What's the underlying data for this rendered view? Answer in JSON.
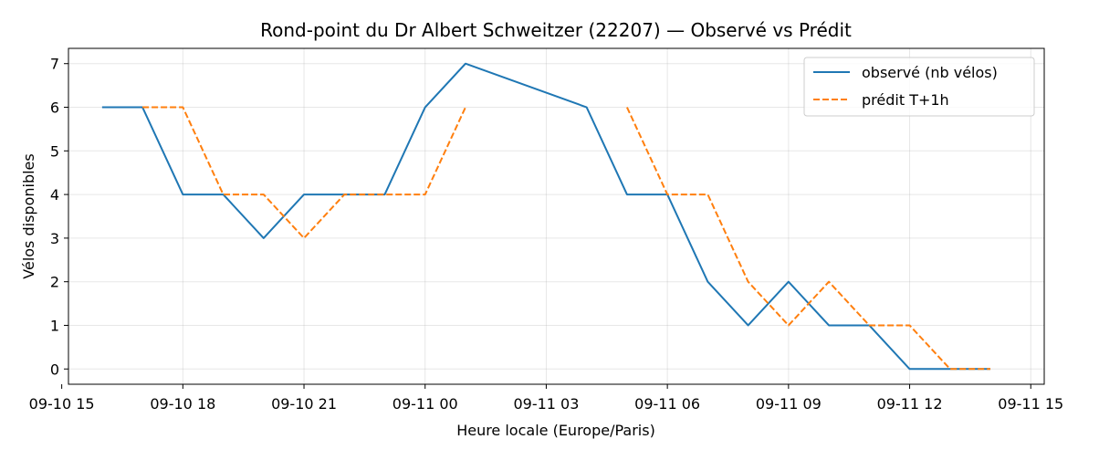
{
  "chart_data": {
    "type": "line",
    "title": "Rond-point du Dr Albert Schweitzer (22207) — Observé vs Prédit",
    "xlabel": "Heure locale (Europe/Paris)",
    "ylabel": "Vélos disponibles",
    "xlim": [
      "2025-09-10T15:10",
      "2025-09-11T15:20"
    ],
    "ylim": [
      -0.35,
      7.35
    ],
    "xticks": [
      {
        "t": "2025-09-10T15:00",
        "label": "09-10 15"
      },
      {
        "t": "2025-09-10T18:00",
        "label": "09-10 18"
      },
      {
        "t": "2025-09-10T21:00",
        "label": "09-10 21"
      },
      {
        "t": "2025-09-11T00:00",
        "label": "09-11 00"
      },
      {
        "t": "2025-09-11T03:00",
        "label": "09-11 03"
      },
      {
        "t": "2025-09-11T06:00",
        "label": "09-11 06"
      },
      {
        "t": "2025-09-11T09:00",
        "label": "09-11 09"
      },
      {
        "t": "2025-09-11T12:00",
        "label": "09-11 12"
      },
      {
        "t": "2025-09-11T15:00",
        "label": "09-11 15"
      }
    ],
    "yticks": [
      0,
      1,
      2,
      3,
      4,
      5,
      6,
      7
    ],
    "grid": true,
    "legend_position": "top-right",
    "series": [
      {
        "name": "observé (nb vélos)",
        "color": "#1f77b4",
        "style": "solid",
        "segments": [
          [
            [
              "2025-09-10T16:00",
              6
            ],
            [
              "2025-09-10T17:00",
              6
            ],
            [
              "2025-09-10T18:00",
              4
            ],
            [
              "2025-09-10T19:00",
              4
            ],
            [
              "2025-09-10T20:00",
              3
            ],
            [
              "2025-09-10T21:00",
              4
            ],
            [
              "2025-09-10T22:00",
              4
            ],
            [
              "2025-09-10T23:00",
              4
            ],
            [
              "2025-09-11T00:00",
              6
            ],
            [
              "2025-09-11T01:00",
              7
            ],
            [
              "2025-09-11T04:00",
              6
            ],
            [
              "2025-09-11T05:00",
              4
            ],
            [
              "2025-09-11T06:00",
              4
            ],
            [
              "2025-09-11T07:00",
              2
            ],
            [
              "2025-09-11T08:00",
              1
            ],
            [
              "2025-09-11T09:00",
              2
            ],
            [
              "2025-09-11T10:00",
              1
            ],
            [
              "2025-09-11T11:00",
              1
            ],
            [
              "2025-09-11T12:00",
              0
            ],
            [
              "2025-09-11T13:00",
              0
            ],
            [
              "2025-09-11T14:00",
              0
            ]
          ]
        ]
      },
      {
        "name": "prédit T+1h",
        "color": "#ff7f0e",
        "style": "dashed",
        "segments": [
          [
            [
              "2025-09-10T17:00",
              6
            ],
            [
              "2025-09-10T18:00",
              6
            ],
            [
              "2025-09-10T19:00",
              4
            ],
            [
              "2025-09-10T20:00",
              4
            ],
            [
              "2025-09-10T21:00",
              3
            ],
            [
              "2025-09-10T22:00",
              4
            ],
            [
              "2025-09-10T23:00",
              4
            ],
            [
              "2025-09-11T00:00",
              4
            ],
            [
              "2025-09-11T01:00",
              6
            ]
          ],
          [
            [
              "2025-09-11T05:00",
              6
            ],
            [
              "2025-09-11T06:00",
              4
            ],
            [
              "2025-09-11T07:00",
              4
            ],
            [
              "2025-09-11T08:00",
              2
            ],
            [
              "2025-09-11T09:00",
              1
            ],
            [
              "2025-09-11T10:00",
              2
            ],
            [
              "2025-09-11T11:00",
              1
            ],
            [
              "2025-09-11T12:00",
              1
            ],
            [
              "2025-09-11T13:00",
              0
            ],
            [
              "2025-09-11T14:00",
              0
            ]
          ]
        ]
      }
    ]
  }
}
